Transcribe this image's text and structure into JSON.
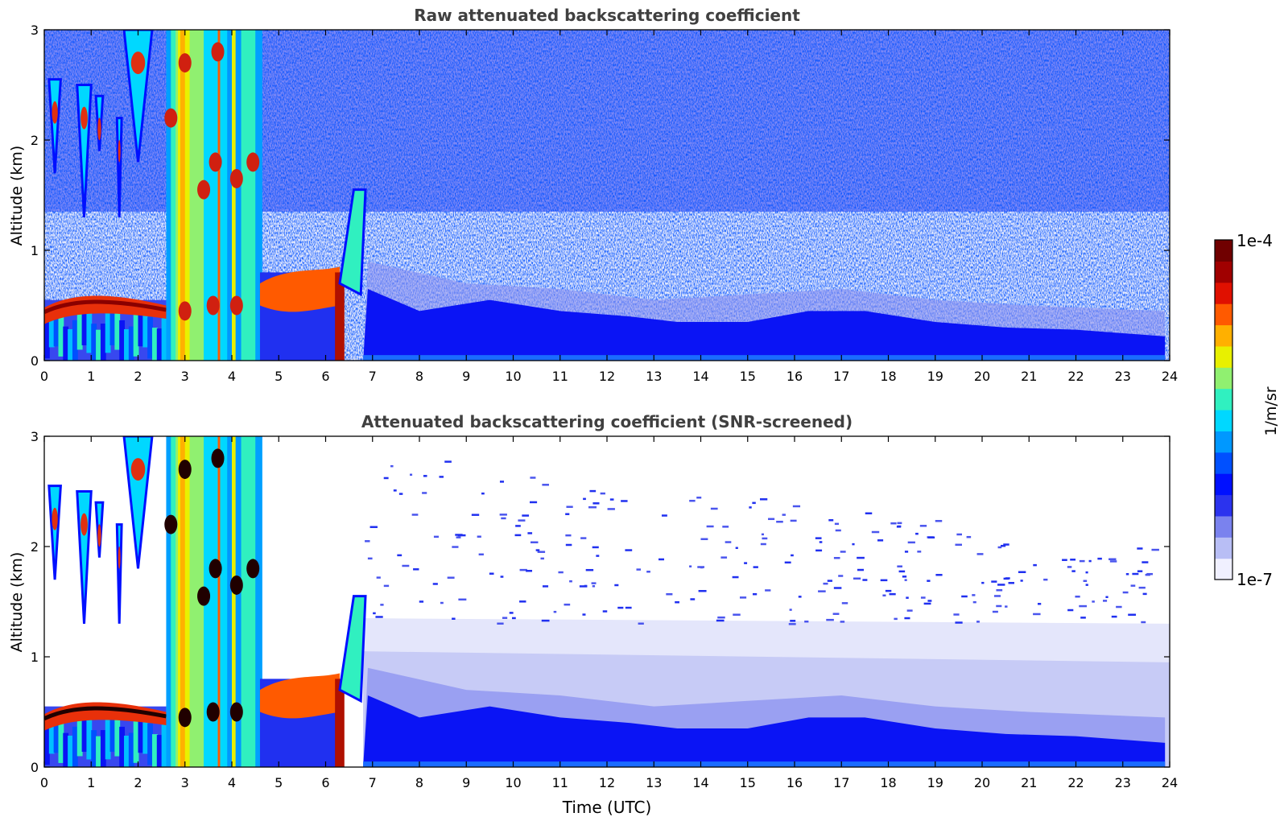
{
  "chart_data": [
    {
      "type": "heatmap",
      "title": "Raw attenuated backscattering coefficient",
      "xlabel": "",
      "ylabel": "Altitude (km)",
      "xlim": [
        0,
        24
      ],
      "ylim": [
        0,
        3
      ],
      "x_ticks": [
        "0",
        "1",
        "2",
        "3",
        "4",
        "5",
        "6",
        "7",
        "8",
        "9",
        "10",
        "11",
        "12",
        "13",
        "14",
        "15",
        "16",
        "17",
        "18",
        "19",
        "20",
        "21",
        "22",
        "23",
        "24"
      ],
      "y_ticks": [
        "0",
        "1",
        "2",
        "3"
      ],
      "grid": false,
      "description_values": {
        "cloud_base_km_0_to_2h": 0.55,
        "high_cloud_layer_km_0_to_2h": [
          1.8,
          2.6
        ],
        "precipitation_band_utc": [
          2.6,
          4.6
        ],
        "boundary_layer_top_km_7_to_24h": 0.45
      }
    },
    {
      "type": "heatmap",
      "title": "Attenuated backscattering coefficient (SNR-screened)",
      "xlabel": "Time (UTC)",
      "ylabel": "Altitude (km)",
      "xlim": [
        0,
        24
      ],
      "ylim": [
        0,
        3
      ],
      "x_ticks": [
        "0",
        "1",
        "2",
        "3",
        "4",
        "5",
        "6",
        "7",
        "8",
        "9",
        "10",
        "11",
        "12",
        "13",
        "14",
        "15",
        "16",
        "17",
        "18",
        "19",
        "20",
        "21",
        "22",
        "23",
        "24"
      ],
      "y_ticks": [
        "0",
        "1",
        "2",
        "3"
      ],
      "grid": false
    }
  ],
  "colorbar": {
    "label": "1/m/sr",
    "max_label": "1e-4",
    "min_label": "1e-7",
    "scale": "log",
    "range": [
      1e-07,
      0.0001
    ],
    "colors": [
      "#f0f0ff",
      "#b8bef5",
      "#7a82ee",
      "#2b33ee",
      "#0010ff",
      "#0050ff",
      "#0098ff",
      "#00d8ff",
      "#30f0c0",
      "#90f070",
      "#e8f000",
      "#ffb000",
      "#ff5a00",
      "#e01000",
      "#a00000",
      "#700000"
    ]
  }
}
